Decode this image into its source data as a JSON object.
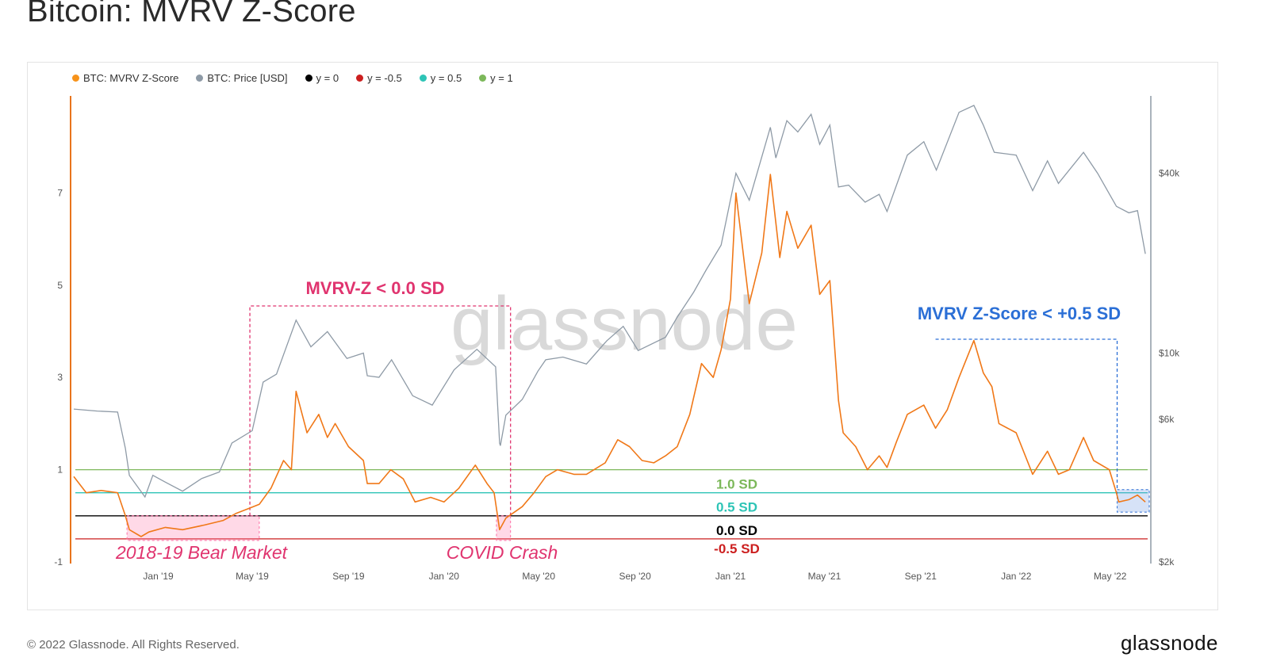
{
  "title": "Bitcoin: MVRV Z-Score",
  "copyright": "© 2022 Glassnode. All Rights Reserved.",
  "footer_logo": "glassnode",
  "watermark": "glassnode",
  "legend": [
    {
      "label": "BTC: MVRV Z-Score",
      "color": "#f7931a"
    },
    {
      "label": "BTC: Price [USD]",
      "color": "#8e9aa6"
    },
    {
      "label": "y = 0",
      "color": "#000000"
    },
    {
      "label": "y = -0.5",
      "color": "#cc1f1f"
    },
    {
      "label": "y = 0.5",
      "color": "#2ec4b6"
    },
    {
      "label": "y = 1",
      "color": "#7cb85a"
    }
  ],
  "annotations": {
    "mvrv_below_zero": "MVRV-Z < 0.0 SD",
    "mvrv_below_half": "MVRV Z-Score < +0.5 SD",
    "bear_market": "2018-19 Bear Market",
    "covid_crash": "COVID Crash",
    "sd_1": "1.0 SD",
    "sd_05": "0.5 SD",
    "sd_0": "0.0 SD",
    "sd_neg05": "-0.5 SD"
  },
  "chart_data": {
    "type": "line",
    "x_axis": {
      "type": "date",
      "range": [
        "2018-09-15",
        "2022-06-20"
      ],
      "tick_labels": [
        "Jan '19",
        "May '19",
        "Sep '19",
        "Jan '20",
        "May '20",
        "Sep '20",
        "Jan '21",
        "May '21",
        "Sep '21",
        "Jan '22",
        "May '22"
      ],
      "tick_dates": [
        "2019-01-01",
        "2019-05-01",
        "2019-09-01",
        "2020-01-01",
        "2020-05-01",
        "2020-09-01",
        "2021-01-01",
        "2021-05-01",
        "2021-09-01",
        "2022-01-01",
        "2022-05-01"
      ]
    },
    "y_left": {
      "range": [
        -1,
        9
      ],
      "ticks": [
        -1,
        1,
        3,
        5,
        7
      ],
      "tick_labels": [
        "-1",
        "1",
        "3",
        "5",
        "7"
      ]
    },
    "y_right": {
      "scale": "log",
      "range": [
        2000,
        70000
      ],
      "ticks": [
        2000,
        6000,
        10000,
        40000
      ],
      "tick_labels": [
        "$2k",
        "$6k",
        "$10k",
        "$40k"
      ]
    },
    "grid": false,
    "legend_position": "top-left",
    "series": [
      {
        "name": "BTC: MVRV Z-Score",
        "axis": "left",
        "color": "#f07818",
        "points": [
          [
            "2018-09-15",
            0.85
          ],
          [
            "2018-10-01",
            0.5
          ],
          [
            "2018-10-20",
            0.55
          ],
          [
            "2018-11-10",
            0.5
          ],
          [
            "2018-11-20",
            0.0
          ],
          [
            "2018-11-25",
            -0.3
          ],
          [
            "2018-12-10",
            -0.45
          ],
          [
            "2018-12-20",
            -0.35
          ],
          [
            "2019-01-10",
            -0.25
          ],
          [
            "2019-02-01",
            -0.3
          ],
          [
            "2019-03-01",
            -0.2
          ],
          [
            "2019-03-25",
            -0.1
          ],
          [
            "2019-04-10",
            0.05
          ],
          [
            "2019-04-25",
            0.15
          ],
          [
            "2019-05-10",
            0.25
          ],
          [
            "2019-05-25",
            0.6
          ],
          [
            "2019-06-10",
            1.2
          ],
          [
            "2019-06-20",
            1.0
          ],
          [
            "2019-06-26",
            2.7
          ],
          [
            "2019-07-10",
            1.8
          ],
          [
            "2019-07-25",
            2.2
          ],
          [
            "2019-08-05",
            1.7
          ],
          [
            "2019-08-15",
            2.0
          ],
          [
            "2019-09-01",
            1.5
          ],
          [
            "2019-09-20",
            1.2
          ],
          [
            "2019-09-25",
            0.7
          ],
          [
            "2019-10-10",
            0.7
          ],
          [
            "2019-10-25",
            1.0
          ],
          [
            "2019-11-10",
            0.8
          ],
          [
            "2019-11-25",
            0.3
          ],
          [
            "2019-12-15",
            0.4
          ],
          [
            "2020-01-01",
            0.3
          ],
          [
            "2020-01-20",
            0.6
          ],
          [
            "2020-02-10",
            1.1
          ],
          [
            "2020-02-25",
            0.7
          ],
          [
            "2020-03-05",
            0.5
          ],
          [
            "2020-03-12",
            -0.3
          ],
          [
            "2020-03-20",
            -0.05
          ],
          [
            "2020-04-10",
            0.2
          ],
          [
            "2020-04-25",
            0.5
          ],
          [
            "2020-05-10",
            0.85
          ],
          [
            "2020-05-25",
            1.0
          ],
          [
            "2020-06-15",
            0.9
          ],
          [
            "2020-07-01",
            0.9
          ],
          [
            "2020-07-25",
            1.15
          ],
          [
            "2020-08-10",
            1.65
          ],
          [
            "2020-08-25",
            1.5
          ],
          [
            "2020-09-10",
            1.2
          ],
          [
            "2020-09-25",
            1.15
          ],
          [
            "2020-10-10",
            1.3
          ],
          [
            "2020-10-25",
            1.5
          ],
          [
            "2020-11-10",
            2.2
          ],
          [
            "2020-11-25",
            3.3
          ],
          [
            "2020-12-10",
            3.0
          ],
          [
            "2020-12-20",
            3.6
          ],
          [
            "2021-01-01",
            4.7
          ],
          [
            "2021-01-08",
            7.0
          ],
          [
            "2021-01-25",
            4.6
          ],
          [
            "2021-02-10",
            5.7
          ],
          [
            "2021-02-21",
            7.4
          ],
          [
            "2021-03-05",
            5.6
          ],
          [
            "2021-03-14",
            6.6
          ],
          [
            "2021-03-28",
            5.8
          ],
          [
            "2021-04-14",
            6.3
          ],
          [
            "2021-04-25",
            4.8
          ],
          [
            "2021-05-08",
            5.1
          ],
          [
            "2021-05-19",
            2.5
          ],
          [
            "2021-05-25",
            1.8
          ],
          [
            "2021-06-10",
            1.5
          ],
          [
            "2021-06-25",
            1.0
          ],
          [
            "2021-07-10",
            1.3
          ],
          [
            "2021-07-20",
            1.05
          ],
          [
            "2021-08-01",
            1.6
          ],
          [
            "2021-08-15",
            2.2
          ],
          [
            "2021-09-05",
            2.4
          ],
          [
            "2021-09-20",
            1.9
          ],
          [
            "2021-10-05",
            2.3
          ],
          [
            "2021-10-20",
            3.0
          ],
          [
            "2021-11-08",
            3.8
          ],
          [
            "2021-11-20",
            3.1
          ],
          [
            "2021-12-01",
            2.8
          ],
          [
            "2021-12-10",
            2.0
          ],
          [
            "2022-01-01",
            1.8
          ],
          [
            "2022-01-22",
            0.9
          ],
          [
            "2022-02-10",
            1.4
          ],
          [
            "2022-02-24",
            0.9
          ],
          [
            "2022-03-10",
            1.0
          ],
          [
            "2022-03-28",
            1.7
          ],
          [
            "2022-04-10",
            1.2
          ],
          [
            "2022-04-30",
            1.0
          ],
          [
            "2022-05-09",
            0.5
          ],
          [
            "2022-05-12",
            0.3
          ],
          [
            "2022-05-25",
            0.35
          ],
          [
            "2022-06-05",
            0.45
          ],
          [
            "2022-06-15",
            0.3
          ]
        ]
      },
      {
        "name": "BTC: Price [USD]",
        "axis": "right",
        "color": "#8e9aa6",
        "points": [
          [
            "2018-09-15",
            6500
          ],
          [
            "2018-10-15",
            6400
          ],
          [
            "2018-11-10",
            6350
          ],
          [
            "2018-11-20",
            4800
          ],
          [
            "2018-11-25",
            3900
          ],
          [
            "2018-12-15",
            3300
          ],
          [
            "2018-12-25",
            3900
          ],
          [
            "2019-01-10",
            3700
          ],
          [
            "2019-02-01",
            3450
          ],
          [
            "2019-02-25",
            3800
          ],
          [
            "2019-03-20",
            4000
          ],
          [
            "2019-04-05",
            5000
          ],
          [
            "2019-05-01",
            5500
          ],
          [
            "2019-05-15",
            8000
          ],
          [
            "2019-06-01",
            8500
          ],
          [
            "2019-06-26",
            12900
          ],
          [
            "2019-07-15",
            10500
          ],
          [
            "2019-08-05",
            11800
          ],
          [
            "2019-08-30",
            9600
          ],
          [
            "2019-09-20",
            10000
          ],
          [
            "2019-09-25",
            8400
          ],
          [
            "2019-10-10",
            8300
          ],
          [
            "2019-10-26",
            9500
          ],
          [
            "2019-11-22",
            7200
          ],
          [
            "2019-12-17",
            6700
          ],
          [
            "2020-01-14",
            8800
          ],
          [
            "2020-02-12",
            10300
          ],
          [
            "2020-03-07",
            9000
          ],
          [
            "2020-03-12",
            5000
          ],
          [
            "2020-03-13",
            4900
          ],
          [
            "2020-03-20",
            6200
          ],
          [
            "2020-04-10",
            7000
          ],
          [
            "2020-04-30",
            8700
          ],
          [
            "2020-05-10",
            9500
          ],
          [
            "2020-06-01",
            9700
          ],
          [
            "2020-07-01",
            9200
          ],
          [
            "2020-07-27",
            11000
          ],
          [
            "2020-08-17",
            12300
          ],
          [
            "2020-09-05",
            10200
          ],
          [
            "2020-10-10",
            11300
          ],
          [
            "2020-10-25",
            13200
          ],
          [
            "2020-11-15",
            16000
          ],
          [
            "2020-12-01",
            19000
          ],
          [
            "2020-12-20",
            23000
          ],
          [
            "2021-01-08",
            40000
          ],
          [
            "2021-01-25",
            32500
          ],
          [
            "2021-02-21",
            57000
          ],
          [
            "2021-02-28",
            45000
          ],
          [
            "2021-03-14",
            60000
          ],
          [
            "2021-03-28",
            55000
          ],
          [
            "2021-04-14",
            63000
          ],
          [
            "2021-04-25",
            50000
          ],
          [
            "2021-05-08",
            58000
          ],
          [
            "2021-05-19",
            36000
          ],
          [
            "2021-06-01",
            36500
          ],
          [
            "2021-06-22",
            32000
          ],
          [
            "2021-07-10",
            34000
          ],
          [
            "2021-07-20",
            29800
          ],
          [
            "2021-08-15",
            46000
          ],
          [
            "2021-09-05",
            51000
          ],
          [
            "2021-09-21",
            41000
          ],
          [
            "2021-10-20",
            64000
          ],
          [
            "2021-11-08",
            67500
          ],
          [
            "2021-11-20",
            58000
          ],
          [
            "2021-12-04",
            47000
          ],
          [
            "2022-01-01",
            46000
          ],
          [
            "2022-01-22",
            35000
          ],
          [
            "2022-02-10",
            44000
          ],
          [
            "2022-02-24",
            37000
          ],
          [
            "2022-03-28",
            47000
          ],
          [
            "2022-04-15",
            40000
          ],
          [
            "2022-05-09",
            31000
          ],
          [
            "2022-05-25",
            29500
          ],
          [
            "2022-06-05",
            30000
          ],
          [
            "2022-06-15",
            21500
          ]
        ]
      }
    ],
    "reference_lines": [
      {
        "name": "y = 1",
        "y": 1,
        "color": "#7cb85a",
        "label": "1.0 SD"
      },
      {
        "name": "y = 0.5",
        "y": 0.5,
        "color": "#2ec4b6",
        "label": "0.5 SD"
      },
      {
        "name": "y = 0",
        "y": 0,
        "color": "#000000",
        "label": "0.0 SD"
      },
      {
        "name": "y = -0.5",
        "y": -0.5,
        "color": "#cc1f1f",
        "label": "-0.5 SD"
      }
    ]
  }
}
